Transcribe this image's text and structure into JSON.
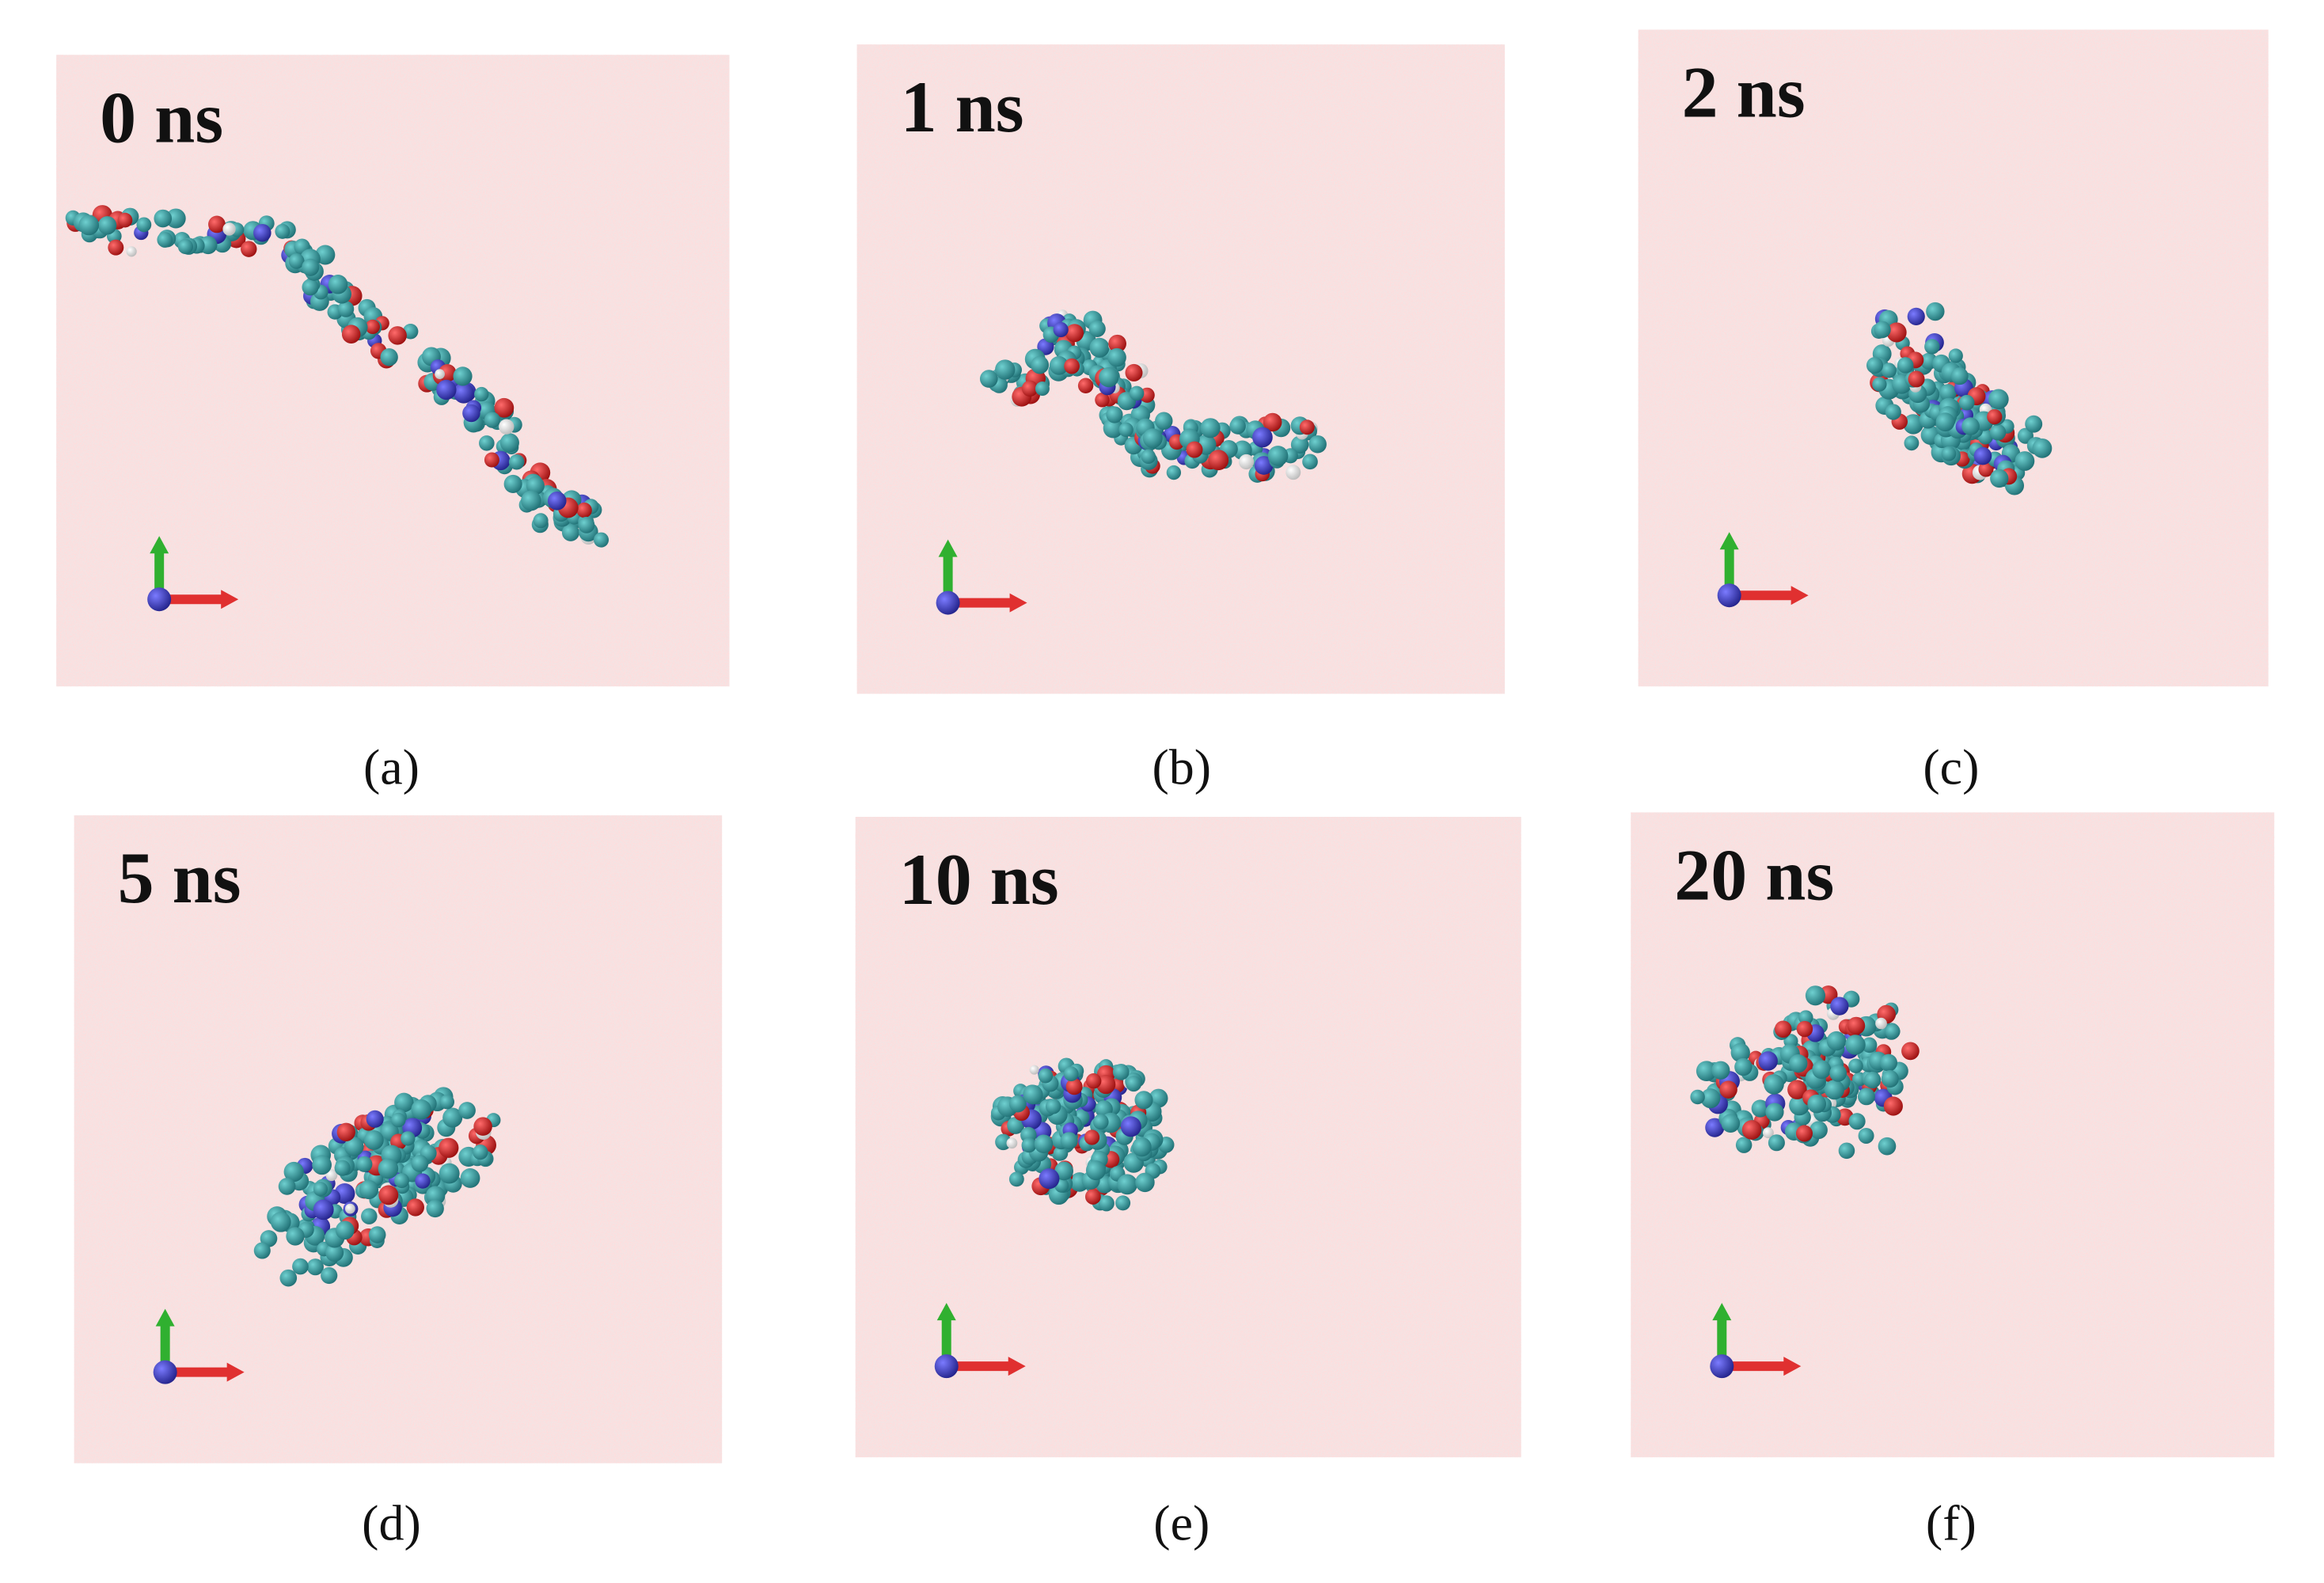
{
  "panels": [
    {
      "time": "0 ns",
      "caption": "(a)"
    },
    {
      "time": "1 ns",
      "caption": "(b)"
    },
    {
      "time": "2 ns",
      "caption": "(c)"
    },
    {
      "time": "5 ns",
      "caption": "(d)"
    },
    {
      "time": "10 ns",
      "caption": "(e)"
    },
    {
      "time": "20 ns",
      "caption": "(f)"
    }
  ]
}
